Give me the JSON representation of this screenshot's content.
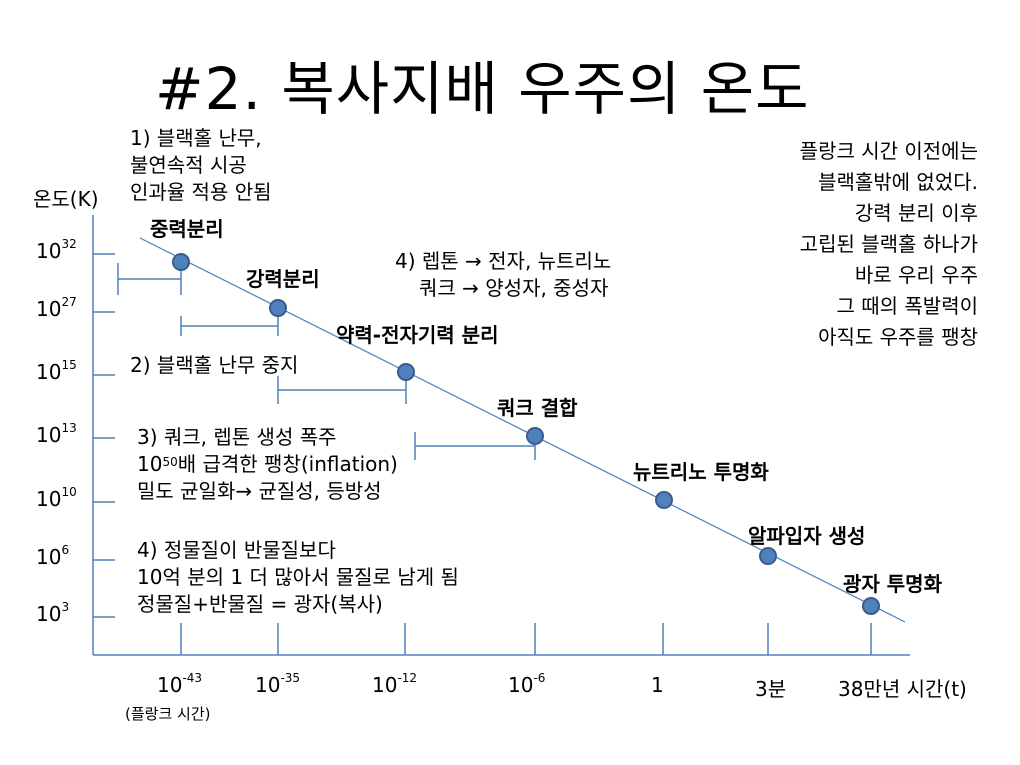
{
  "title": "#2. 복사지배 우주의 온도",
  "chart_data": {
    "type": "scatter",
    "title": "#2. 복사지배 우주의 온도",
    "ylabel": "온도(K)",
    "xlabel": "시간(t)",
    "x_ticks": [
      {
        "base": "10",
        "exp": "-43",
        "sub": "(플랑크 시간)"
      },
      {
        "base": "10",
        "exp": "-35"
      },
      {
        "base": "10",
        "exp": "-12"
      },
      {
        "base": "10",
        "exp": "-6"
      },
      {
        "base": "1",
        "exp": ""
      },
      {
        "base": "3분",
        "exp": ""
      },
      {
        "base": "38만년 시간(t)",
        "exp": ""
      }
    ],
    "y_ticks": [
      {
        "base": "10",
        "exp": "32"
      },
      {
        "base": "10",
        "exp": "27"
      },
      {
        "base": "10",
        "exp": "15"
      },
      {
        "base": "10",
        "exp": "13"
      },
      {
        "base": "10",
        "exp": "10"
      },
      {
        "base": "10",
        "exp": "6"
      },
      {
        "base": "10",
        "exp": "3"
      }
    ],
    "points": [
      {
        "label": "중력분리",
        "x": "10^-43"
      },
      {
        "label": "강력분리",
        "x": "10^-35"
      },
      {
        "label": "약력-전자기력 분리",
        "x": "10^-12"
      },
      {
        "label": "쿼크 결합",
        "x": "10^-6"
      },
      {
        "label": "뉴트리노 투명화",
        "x": "1"
      },
      {
        "label": "알파입자 생성",
        "x": "3분"
      },
      {
        "label": "광자 투명화",
        "x": "38만년"
      }
    ],
    "colors": {
      "axis": "#4f81bd",
      "point_fill": "#4f81bd",
      "point_stroke": "#385d8a",
      "line": "#4f81bd"
    }
  },
  "notes": {
    "n1": [
      "1) 블랙홀 난무,",
      "불연속적 시공",
      "인과율 적용 안됨"
    ],
    "n2": "2) 블랙홀 난무 중지",
    "n3_line1": "3) 쿼크, 렙톤 생성 폭주",
    "n3_line2_base": "10",
    "n3_line2_exp": "50",
    "n3_line2_rest": "배 급격한 팽창(inflation)",
    "n3_line3": "밀도 균일화→ 균질성, 등방성",
    "n4a": [
      "4) 렙톤 → 전자, 뉴트리노",
      "쿼크 → 양성자, 중성자"
    ],
    "n4b": [
      "4) 정물질이 반물질보다",
      "10억 분의 1 더 많아서 물질로 남게 됨",
      "정물질+반물질 = 광자(복사)"
    ],
    "right": [
      "플랑크 시간 이전에는",
      "블랙홀밖에 없었다.",
      "강력 분리 이후",
      "고립된 블랙홀 하나가",
      "바로 우리 우주",
      "그 때의 폭발력이",
      "아직도 우주를 팽창"
    ]
  }
}
